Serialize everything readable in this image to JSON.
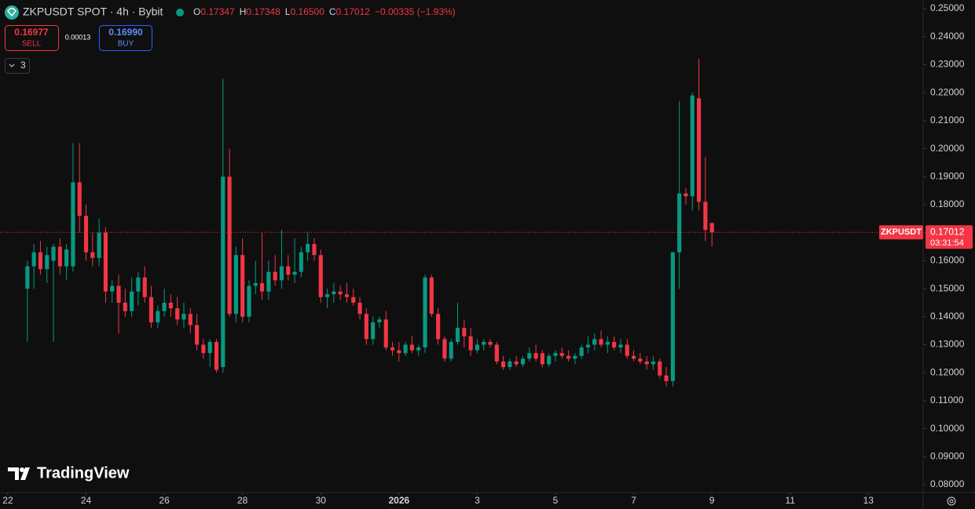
{
  "chart_data": {
    "type": "candlestick",
    "title": "ZKPUSDT SPOT · 4h · Bybit",
    "header": {
      "o_label": "O",
      "o": "0.17347",
      "h_label": "H",
      "h": "0.17348",
      "l_label": "L",
      "l": "0.16500",
      "c_label": "C",
      "c": "0.17012",
      "change": "−0.00335 (−1.93%)"
    },
    "trade": {
      "sell_price": "0.16977",
      "sell_label": "SELL",
      "spread": "0.00013",
      "buy_price": "0.16990",
      "buy_label": "BUY"
    },
    "indicators_count": "3",
    "price_label": {
      "symbol": "ZKPUSDT",
      "price": 0.17012,
      "price_text": "0.17012",
      "countdown": "03:31:54"
    },
    "brand": "TradingView",
    "up_color": "#089981",
    "down_color": "#f23645",
    "grid": false,
    "x": [
      0,
      1,
      2,
      3,
      4,
      5,
      6,
      7,
      8,
      9,
      10,
      11,
      12,
      13,
      14,
      15,
      16,
      17,
      18,
      19,
      20,
      21,
      22,
      23,
      24,
      25,
      26,
      27,
      28,
      29,
      30,
      31,
      32,
      33,
      34,
      35,
      36,
      37,
      38,
      39,
      40,
      41,
      42,
      43,
      44,
      45,
      46,
      47,
      48,
      49,
      50,
      51,
      52,
      53,
      54,
      55,
      56,
      57,
      58,
      59,
      60,
      61,
      62,
      63,
      64,
      65,
      66,
      67,
      68,
      69,
      70,
      71,
      72,
      73,
      74,
      75,
      76,
      77,
      78,
      79,
      80,
      81,
      82,
      83,
      84,
      85,
      86,
      87,
      88,
      89,
      90,
      91,
      92,
      93,
      94,
      95,
      96,
      97,
      98,
      99,
      100,
      101,
      102,
      103,
      104,
      105
    ],
    "open": [
      0.15,
      0.158,
      0.163,
      0.157,
      0.16,
      0.165,
      0.158,
      0.158,
      0.188,
      0.176,
      0.163,
      0.161,
      0.17,
      0.149,
      0.151,
      0.145,
      0.142,
      0.149,
      0.154,
      0.147,
      0.138,
      0.142,
      0.145,
      0.143,
      0.139,
      0.141,
      0.137,
      0.13,
      0.127,
      0.131,
      0.122,
      0.19,
      0.141,
      0.162,
      0.14,
      0.151,
      0.152,
      0.149,
      0.156,
      0.153,
      0.158,
      0.155,
      0.156,
      0.163,
      0.166,
      0.162,
      0.147,
      0.148,
      0.149,
      0.148,
      0.147,
      0.145,
      0.141,
      0.132,
      0.138,
      0.139,
      0.129,
      0.128,
      0.127,
      0.13,
      0.128,
      0.129,
      0.154,
      0.141,
      0.132,
      0.125,
      0.131,
      0.136,
      0.133,
      0.128,
      0.13,
      0.131,
      0.13,
      0.124,
      0.122,
      0.124,
      0.123,
      0.125,
      0.127,
      0.127,
      0.123,
      0.126,
      0.127,
      0.126,
      0.125,
      0.126,
      0.129,
      0.13,
      0.132,
      0.13,
      0.131,
      0.129,
      0.13,
      0.126,
      0.125,
      0.124,
      0.123,
      0.124,
      0.119,
      0.117,
      0.163,
      0.184,
      0.183,
      0.218,
      0.181,
      0.17347
    ],
    "high": [
      0.16,
      0.166,
      0.167,
      0.165,
      0.166,
      0.168,
      0.166,
      0.202,
      0.202,
      0.18,
      0.17,
      0.175,
      0.172,
      0.153,
      0.155,
      0.15,
      0.154,
      0.156,
      0.158,
      0.151,
      0.144,
      0.15,
      0.148,
      0.147,
      0.145,
      0.143,
      0.141,
      0.132,
      0.132,
      0.132,
      0.225,
      0.2,
      0.165,
      0.168,
      0.153,
      0.16,
      0.17,
      0.16,
      0.162,
      0.171,
      0.162,
      0.168,
      0.165,
      0.17,
      0.168,
      0.164,
      0.15,
      0.152,
      0.151,
      0.152,
      0.15,
      0.147,
      0.143,
      0.14,
      0.14,
      0.142,
      0.131,
      0.131,
      0.131,
      0.133,
      0.13,
      0.155,
      0.155,
      0.143,
      0.133,
      0.132,
      0.145,
      0.139,
      0.136,
      0.132,
      0.132,
      0.132,
      0.131,
      0.126,
      0.125,
      0.126,
      0.126,
      0.129,
      0.13,
      0.128,
      0.127,
      0.128,
      0.129,
      0.128,
      0.127,
      0.13,
      0.133,
      0.134,
      0.135,
      0.133,
      0.133,
      0.132,
      0.132,
      0.128,
      0.127,
      0.126,
      0.126,
      0.125,
      0.122,
      0.163,
      0.217,
      0.186,
      0.22,
      0.232,
      0.197,
      0.17348
    ],
    "low": [
      0.131,
      0.15,
      0.155,
      0.152,
      0.131,
      0.155,
      0.153,
      0.156,
      0.17,
      0.16,
      0.158,
      0.158,
      0.145,
      0.145,
      0.134,
      0.14,
      0.14,
      0.144,
      0.145,
      0.136,
      0.136,
      0.14,
      0.14,
      0.137,
      0.136,
      0.134,
      0.128,
      0.125,
      0.122,
      0.12,
      0.12,
      0.14,
      0.138,
      0.138,
      0.138,
      0.148,
      0.146,
      0.146,
      0.151,
      0.15,
      0.153,
      0.152,
      0.154,
      0.16,
      0.16,
      0.145,
      0.143,
      0.145,
      0.146,
      0.145,
      0.144,
      0.139,
      0.13,
      0.13,
      0.136,
      0.128,
      0.126,
      0.124,
      0.126,
      0.127,
      0.126,
      0.127,
      0.14,
      0.13,
      0.124,
      0.124,
      0.13,
      0.129,
      0.126,
      0.127,
      0.128,
      0.129,
      0.123,
      0.121,
      0.121,
      0.122,
      0.122,
      0.124,
      0.124,
      0.122,
      0.122,
      0.124,
      0.125,
      0.124,
      0.123,
      0.125,
      0.127,
      0.128,
      0.129,
      0.127,
      0.128,
      0.127,
      0.125,
      0.124,
      0.123,
      0.121,
      0.121,
      0.118,
      0.115,
      0.115,
      0.15,
      0.18,
      0.178,
      0.178,
      0.167,
      0.165
    ],
    "close": [
      0.158,
      0.163,
      0.157,
      0.162,
      0.165,
      0.158,
      0.164,
      0.188,
      0.176,
      0.163,
      0.161,
      0.17,
      0.149,
      0.151,
      0.145,
      0.142,
      0.149,
      0.154,
      0.147,
      0.138,
      0.142,
      0.145,
      0.143,
      0.139,
      0.141,
      0.137,
      0.13,
      0.127,
      0.131,
      0.121,
      0.19,
      0.141,
      0.162,
      0.14,
      0.151,
      0.152,
      0.149,
      0.156,
      0.153,
      0.158,
      0.155,
      0.156,
      0.163,
      0.166,
      0.162,
      0.147,
      0.148,
      0.149,
      0.148,
      0.147,
      0.145,
      0.141,
      0.132,
      0.138,
      0.139,
      0.129,
      0.128,
      0.127,
      0.13,
      0.128,
      0.129,
      0.154,
      0.141,
      0.132,
      0.125,
      0.131,
      0.136,
      0.133,
      0.128,
      0.13,
      0.131,
      0.13,
      0.124,
      0.122,
      0.124,
      0.123,
      0.125,
      0.127,
      0.125,
      0.123,
      0.126,
      0.127,
      0.126,
      0.125,
      0.126,
      0.129,
      0.13,
      0.132,
      0.13,
      0.131,
      0.129,
      0.13,
      0.126,
      0.125,
      0.124,
      0.123,
      0.124,
      0.119,
      0.117,
      0.163,
      0.184,
      0.183,
      0.219,
      0.181,
      0.171,
      0.17012
    ],
    "xlim": [
      -4.2,
      137.4
    ],
    "xticks": [
      {
        "value": -3,
        "label": "22"
      },
      {
        "value": 9,
        "label": "24"
      },
      {
        "value": 21,
        "label": "26"
      },
      {
        "value": 33,
        "label": "28"
      },
      {
        "value": 45,
        "label": "30"
      },
      {
        "value": 57,
        "label": "2026"
      },
      {
        "value": 69,
        "label": "3"
      },
      {
        "value": 81,
        "label": "5"
      },
      {
        "value": 93,
        "label": "7"
      },
      {
        "value": 105,
        "label": "9"
      },
      {
        "value": 117,
        "label": "11"
      },
      {
        "value": 129,
        "label": "13"
      }
    ],
    "ylim": [
      0.0772,
      0.2531
    ],
    "yticks": [
      {
        "value": 0.08,
        "label": "0.08000"
      },
      {
        "value": 0.09,
        "label": "0.09000"
      },
      {
        "value": 0.1,
        "label": "0.10000"
      },
      {
        "value": 0.11,
        "label": "0.11000"
      },
      {
        "value": 0.12,
        "label": "0.12000"
      },
      {
        "value": 0.13,
        "label": "0.13000"
      },
      {
        "value": 0.14,
        "label": "0.14000"
      },
      {
        "value": 0.15,
        "label": "0.15000"
      },
      {
        "value": 0.16,
        "label": "0.16000"
      },
      {
        "value": 0.17,
        "label": "0.17000"
      },
      {
        "value": 0.18,
        "label": "0.18000"
      },
      {
        "value": 0.19,
        "label": "0.19000"
      },
      {
        "value": 0.2,
        "label": "0.20000"
      },
      {
        "value": 0.21,
        "label": "0.21000"
      },
      {
        "value": 0.22,
        "label": "0.22000"
      },
      {
        "value": 0.23,
        "label": "0.23000"
      },
      {
        "value": 0.24,
        "label": "0.24000"
      },
      {
        "value": 0.25,
        "label": "0.25000"
      }
    ]
  }
}
